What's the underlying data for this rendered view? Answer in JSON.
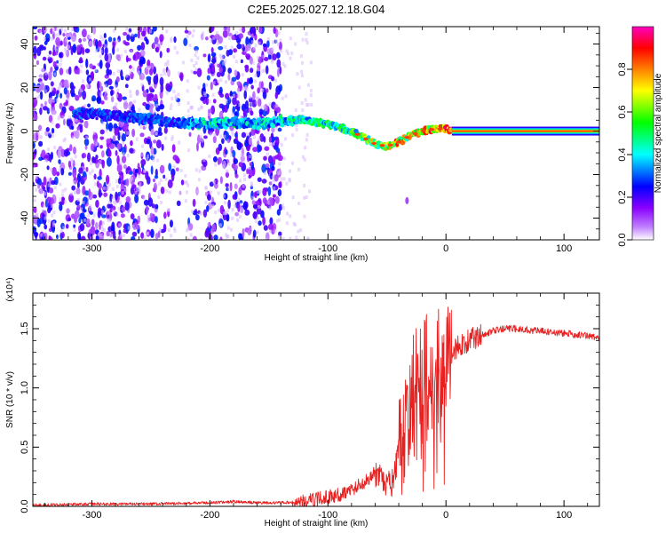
{
  "figure_title": "C2E5.2025.027.12.18.G04",
  "chart_data": [
    {
      "type": "heatmap",
      "xlabel": "Height of straight line (km)",
      "ylabel": "Frequency (Hz)",
      "xlim": [
        -350,
        130
      ],
      "ylim": [
        -50,
        48
      ],
      "x_ticks": [
        -300,
        -200,
        -100,
        0,
        100
      ],
      "y_ticks": [
        -40,
        -20,
        0,
        20,
        40
      ],
      "x_tick_labels": [
        "-300",
        "-200",
        "-100",
        "0",
        "100"
      ],
      "y_tick_labels": [
        "-40",
        "-20",
        "0",
        "20",
        "40"
      ],
      "colorbar": {
        "label": "Normalized spectral amplitude",
        "range": [
          0,
          1
        ],
        "ticks": [
          0.0,
          0.2,
          0.4,
          0.6,
          0.8
        ],
        "tick_labels": [
          "0.0",
          "0.2",
          "0.4",
          "0.6",
          "0.8"
        ],
        "colormap": [
          "#ffffff",
          "#8a00ff",
          "#0000ff",
          "#00ffff",
          "#00ff00",
          "#ffff00",
          "#ff8000",
          "#ff0000",
          "#ff00c0"
        ]
      },
      "ridge": {
        "x": [
          -300,
          -260,
          -230,
          -200,
          -180,
          -160,
          -140,
          -120,
          -100,
          -80,
          -70,
          -60,
          -50,
          -40,
          -30,
          -20,
          -10,
          0,
          10,
          60,
          130
        ],
        "y": [
          8,
          6,
          4,
          3,
          4,
          3,
          5,
          5,
          3,
          0,
          -3,
          -6,
          -7,
          -5,
          -2,
          0,
          1,
          1,
          0,
          0,
          0
        ],
        "peak_amplitude": [
          0.3,
          0.3,
          0.3,
          0.45,
          0.45,
          0.4,
          0.45,
          0.5,
          0.5,
          0.55,
          0.6,
          0.7,
          0.7,
          0.8,
          0.75,
          0.8,
          0.85,
          0.9,
          1.0,
          1.0,
          1.0
        ]
      },
      "noise_region": {
        "x_range": [
          -350,
          -135
        ],
        "amplitude": 0.15
      },
      "isolated_blob": {
        "x": -33,
        "y": -32
      }
    },
    {
      "type": "line",
      "xlabel": "Height of straight line (km)",
      "ylabel": "SNR (10 * v/v)",
      "y_multiplier": "(x10⁴)",
      "xlim": [
        -350,
        130
      ],
      "ylim": [
        0,
        1.8
      ],
      "x_ticks": [
        -300,
        -200,
        -100,
        0,
        100
      ],
      "y_ticks": [
        0.0,
        0.5,
        1.0,
        1.5
      ],
      "x_tick_labels": [
        "-300",
        "-200",
        "-100",
        "0",
        "100"
      ],
      "y_tick_labels": [
        "0.0",
        "0.5",
        "1.0",
        "1.5"
      ],
      "series": [
        {
          "color": "#e82020",
          "x": [
            -350,
            -300,
            -250,
            -200,
            -180,
            -160,
            -140,
            -120,
            -110,
            -100,
            -90,
            -80,
            -70,
            -60,
            -55,
            -50,
            -45,
            -40,
            -35,
            -30,
            -25,
            -22,
            -20,
            -18,
            -15,
            -12,
            -10,
            -5,
            0,
            5,
            10,
            20,
            30,
            40,
            50,
            60,
            80,
            100,
            120,
            130
          ],
          "y": [
            0.01,
            0.02,
            0.02,
            0.03,
            0.04,
            0.03,
            0.03,
            0.04,
            0.06,
            0.08,
            0.1,
            0.14,
            0.2,
            0.28,
            0.22,
            0.18,
            0.2,
            0.45,
            0.6,
            0.9,
            1.15,
            1.3,
            1.2,
            1.35,
            1.1,
            1.15,
            1.2,
            1.25,
            1.25,
            1.3,
            1.35,
            1.4,
            1.45,
            1.48,
            1.5,
            1.5,
            1.48,
            1.46,
            1.44,
            1.42
          ]
        }
      ]
    }
  ]
}
